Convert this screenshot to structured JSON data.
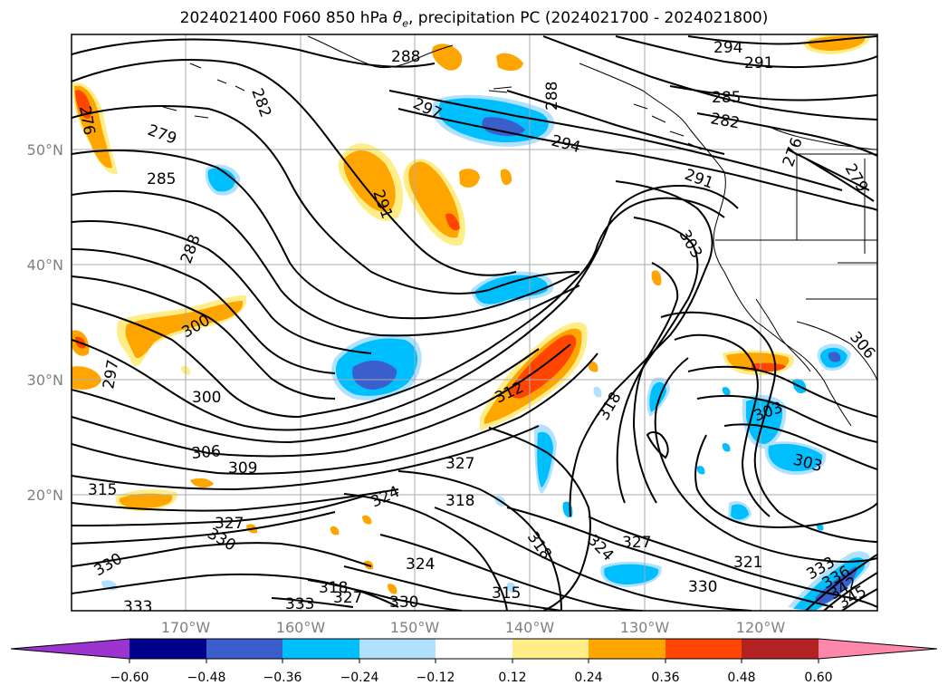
{
  "title": {
    "prefix": "2024021400 F060 850 hPa ",
    "theta": "θ",
    "theta_sub": "e",
    "suffix": ", precipitation PC (2024021700 - 2024021800)"
  },
  "map": {
    "lat_ticks": [
      "50°N",
      "40°N",
      "30°N",
      "20°N"
    ],
    "lon_ticks": [
      "170°W",
      "160°W",
      "150°W",
      "140°W",
      "130°W",
      "120°W"
    ],
    "contour_labels": [
      "294",
      "291",
      "288",
      "288",
      "297",
      "294",
      "285",
      "282",
      "279",
      "276",
      "279",
      "285",
      "291",
      "282",
      "276",
      "291",
      "288",
      "303",
      "300",
      "306",
      "297",
      "300",
      "312",
      "318",
      "303",
      "303",
      "306",
      "309",
      "327",
      "315",
      "324",
      "318",
      "327",
      "330",
      "318",
      "324",
      "327",
      "321",
      "330",
      "330",
      "333",
      "318",
      "333",
      "327",
      "330",
      "315",
      "324",
      "333",
      "336",
      "342",
      "345"
    ]
  },
  "colorbar": {
    "ticks": [
      "−0.60",
      "−0.48",
      "−0.36",
      "−0.24",
      "−0.12",
      "0.12",
      "0.24",
      "0.36",
      "0.48",
      "0.60"
    ],
    "colors": [
      "#9c35cf",
      "#00008b",
      "#3a5fcd",
      "#00bfff",
      "#b0e2ff",
      "#ffffff",
      "#ffee88",
      "#ffa500",
      "#ff4500",
      "#b22222",
      "#ff88aa"
    ]
  }
}
